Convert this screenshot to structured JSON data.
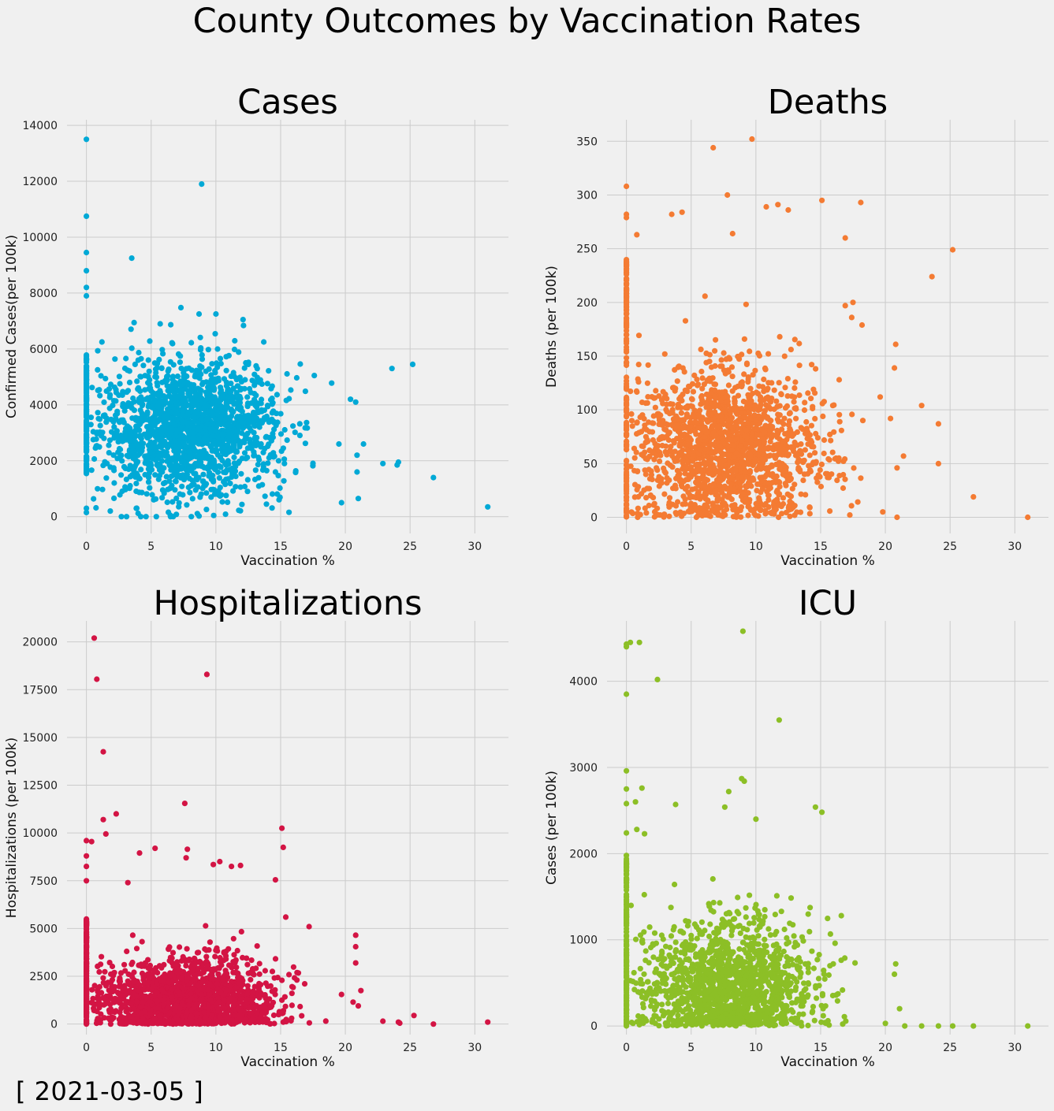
{
  "figure": {
    "title": "County Outcomes by Vaccination Rates",
    "date_label": "[ 2021-03-05 ]"
  },
  "chart_data": [
    {
      "type": "scatter",
      "key": "cases",
      "title": "Cases",
      "xlabel": "Vaccination %",
      "ylabel": "Confirmed Cases(per 100k)",
      "color": "#00a9d6",
      "xlim": [
        -1.5,
        32.6
      ],
      "ylim": [
        -600,
        14200
      ],
      "xticks": [
        0,
        5,
        10,
        15,
        20,
        25,
        30
      ],
      "yticks": [
        0,
        2000,
        4000,
        6000,
        8000,
        10000,
        12000,
        14000
      ],
      "grid": true,
      "cluster": {
        "x_center": 8,
        "x_spread": 3.4,
        "y_center": 3100,
        "y_spread": 1150,
        "count": 1700,
        "zero_x_count": 160,
        "zero_x_y_range": [
          1500,
          5800
        ]
      },
      "points": [
        {
          "x": 0,
          "y": 13500
        },
        {
          "x": 8.9,
          "y": 11900
        },
        {
          "x": 0,
          "y": 10750
        },
        {
          "x": 0,
          "y": 9450
        },
        {
          "x": 3.5,
          "y": 9250
        },
        {
          "x": 0,
          "y": 8800
        },
        {
          "x": 0,
          "y": 8200
        },
        {
          "x": 0,
          "y": 7900
        },
        {
          "x": 8.7,
          "y": 7250
        },
        {
          "x": 10,
          "y": 7250
        },
        {
          "x": 12.1,
          "y": 7050
        },
        {
          "x": 5.7,
          "y": 6900
        },
        {
          "x": 13.7,
          "y": 6250
        },
        {
          "x": 1.2,
          "y": 6250
        },
        {
          "x": 23.6,
          "y": 5300
        },
        {
          "x": 25.2,
          "y": 5450
        },
        {
          "x": 17.6,
          "y": 5050
        },
        {
          "x": 20.4,
          "y": 4200
        },
        {
          "x": 20.8,
          "y": 4100
        },
        {
          "x": 21.4,
          "y": 2600
        },
        {
          "x": 20.9,
          "y": 2200
        },
        {
          "x": 20.9,
          "y": 1600
        },
        {
          "x": 22.9,
          "y": 1900
        },
        {
          "x": 24.1,
          "y": 1950
        },
        {
          "x": 24.0,
          "y": 1850
        },
        {
          "x": 26.8,
          "y": 1400
        },
        {
          "x": 31.0,
          "y": 350
        },
        {
          "x": 21.0,
          "y": 650
        },
        {
          "x": 19.7,
          "y": 500
        },
        {
          "x": 2.7,
          "y": 0
        },
        {
          "x": 3.1,
          "y": 0
        },
        {
          "x": 4.2,
          "y": 0
        },
        {
          "x": 4.6,
          "y": 0
        },
        {
          "x": 5.4,
          "y": 0
        },
        {
          "x": 6.5,
          "y": 0
        },
        {
          "x": 6.7,
          "y": 0
        },
        {
          "x": 8.1,
          "y": 0
        },
        {
          "x": 0,
          "y": 150
        },
        {
          "x": 0,
          "y": 300
        },
        {
          "x": 19.5,
          "y": 2600
        }
      ]
    },
    {
      "type": "scatter",
      "key": "deaths",
      "title": "Deaths",
      "xlabel": "Vaccination %",
      "ylabel": "Deaths (per 100k)",
      "color": "#f47b33",
      "xlim": [
        -1.5,
        32.6
      ],
      "ylim": [
        -15,
        370
      ],
      "xticks": [
        0,
        5,
        10,
        15,
        20,
        25,
        30
      ],
      "yticks": [
        0,
        50,
        100,
        150,
        200,
        250,
        300,
        350
      ],
      "grid": true,
      "cluster": {
        "x_center": 8,
        "x_spread": 3.4,
        "y_center": 62,
        "y_spread": 38,
        "count": 1700,
        "zero_x_count": 170,
        "zero_x_y_range": [
          0,
          240
        ]
      },
      "points": [
        {
          "x": 9.7,
          "y": 352
        },
        {
          "x": 6.7,
          "y": 344
        },
        {
          "x": 0,
          "y": 308
        },
        {
          "x": 7.8,
          "y": 300
        },
        {
          "x": 15.1,
          "y": 295
        },
        {
          "x": 18.1,
          "y": 293
        },
        {
          "x": 11.7,
          "y": 291
        },
        {
          "x": 10.8,
          "y": 289
        },
        {
          "x": 12.5,
          "y": 286
        },
        {
          "x": 0,
          "y": 282
        },
        {
          "x": 4.3,
          "y": 284
        },
        {
          "x": 3.5,
          "y": 282
        },
        {
          "x": 0,
          "y": 279
        },
        {
          "x": 8.2,
          "y": 264
        },
        {
          "x": 0.8,
          "y": 263
        },
        {
          "x": 16.9,
          "y": 260
        },
        {
          "x": 25.2,
          "y": 249
        },
        {
          "x": 23.6,
          "y": 224
        },
        {
          "x": 20.8,
          "y": 161
        },
        {
          "x": 20.7,
          "y": 139
        },
        {
          "x": 22.8,
          "y": 104
        },
        {
          "x": 24.1,
          "y": 87
        },
        {
          "x": 20.4,
          "y": 92
        },
        {
          "x": 24.1,
          "y": 50
        },
        {
          "x": 26.8,
          "y": 19
        },
        {
          "x": 31.0,
          "y": 0
        },
        {
          "x": 20.9,
          "y": 0
        },
        {
          "x": 19.8,
          "y": 5
        },
        {
          "x": 21.4,
          "y": 57
        },
        {
          "x": 17.5,
          "y": 200
        },
        {
          "x": 18.2,
          "y": 179
        },
        {
          "x": 17.4,
          "y": 186
        },
        {
          "x": 16.9,
          "y": 197
        },
        {
          "x": 19.6,
          "y": 112
        },
        {
          "x": 20.9,
          "y": 46
        }
      ]
    },
    {
      "type": "scatter",
      "key": "hospitalizations",
      "title": "Hospitalizations",
      "xlabel": "Vaccination %",
      "ylabel": "Hospitalizations (per 100k)",
      "color": "#d31444",
      "xlim": [
        -1.5,
        32.6
      ],
      "ylim": [
        -550,
        21100
      ],
      "xticks": [
        0,
        5,
        10,
        15,
        20,
        25,
        30
      ],
      "yticks": [
        0,
        2500,
        5000,
        7500,
        10000,
        12500,
        15000,
        17500,
        20000
      ],
      "grid": true,
      "cluster": {
        "x_center": 8,
        "x_spread": 3.3,
        "y_center": 1200,
        "y_spread": 1100,
        "count": 1700,
        "zero_x_count": 190,
        "zero_x_y_range": [
          0,
          5500
        ]
      },
      "points": [
        {
          "x": 0.6,
          "y": 20200
        },
        {
          "x": 9.3,
          "y": 18300
        },
        {
          "x": 0.8,
          "y": 18050
        },
        {
          "x": 1.3,
          "y": 14250
        },
        {
          "x": 7.6,
          "y": 11550
        },
        {
          "x": 2.3,
          "y": 11000
        },
        {
          "x": 1.3,
          "y": 10700
        },
        {
          "x": 15.1,
          "y": 10250
        },
        {
          "x": 1.5,
          "y": 9950
        },
        {
          "x": 0,
          "y": 9600
        },
        {
          "x": 0.4,
          "y": 9550
        },
        {
          "x": 15.2,
          "y": 9250
        },
        {
          "x": 5.3,
          "y": 9200
        },
        {
          "x": 7.8,
          "y": 9150
        },
        {
          "x": 4.1,
          "y": 8950
        },
        {
          "x": 0,
          "y": 8800
        },
        {
          "x": 7.7,
          "y": 8700
        },
        {
          "x": 10.3,
          "y": 8500
        },
        {
          "x": 9.8,
          "y": 8350
        },
        {
          "x": 11.2,
          "y": 8250
        },
        {
          "x": 11.9,
          "y": 8300
        },
        {
          "x": 0,
          "y": 8250
        },
        {
          "x": 14.6,
          "y": 7550
        },
        {
          "x": 3.2,
          "y": 7400
        },
        {
          "x": 0,
          "y": 7500
        },
        {
          "x": 20.8,
          "y": 4650
        },
        {
          "x": 20.8,
          "y": 4050
        },
        {
          "x": 20.8,
          "y": 3200
        },
        {
          "x": 21.2,
          "y": 1750
        },
        {
          "x": 17.2,
          "y": 5100
        },
        {
          "x": 15.4,
          "y": 5600
        },
        {
          "x": 19.7,
          "y": 1550
        },
        {
          "x": 20.6,
          "y": 1150
        },
        {
          "x": 21.0,
          "y": 950
        },
        {
          "x": 22.9,
          "y": 150
        },
        {
          "x": 24.1,
          "y": 100
        },
        {
          "x": 24.2,
          "y": 50
        },
        {
          "x": 25.3,
          "y": 450
        },
        {
          "x": 26.8,
          "y": 0
        },
        {
          "x": 31.0,
          "y": 100
        }
      ]
    },
    {
      "type": "scatter",
      "key": "icu",
      "title": "ICU",
      "xlabel": "Vaccination %",
      "ylabel": "Cases (per 100k)",
      "color": "#8cbf26",
      "xlim": [
        -1.5,
        32.6
      ],
      "ylim": [
        -100,
        4700
      ],
      "xticks": [
        0,
        5,
        10,
        15,
        20,
        25,
        30
      ],
      "yticks": [
        0,
        1000,
        2000,
        3000,
        4000
      ],
      "grid": true,
      "cluster": {
        "x_center": 8,
        "x_spread": 3.2,
        "y_center": 450,
        "y_spread": 380,
        "count": 1500,
        "zero_x_count": 180,
        "zero_x_y_range": [
          0,
          2000
        ]
      },
      "points": [
        {
          "x": 9.0,
          "y": 4580
        },
        {
          "x": 0,
          "y": 4430
        },
        {
          "x": 0.3,
          "y": 4450
        },
        {
          "x": 1.0,
          "y": 4450
        },
        {
          "x": 0,
          "y": 4400
        },
        {
          "x": 2.4,
          "y": 4020
        },
        {
          "x": 0,
          "y": 3850
        },
        {
          "x": 11.8,
          "y": 3550
        },
        {
          "x": 0,
          "y": 2960
        },
        {
          "x": 8.9,
          "y": 2870
        },
        {
          "x": 9.1,
          "y": 2840
        },
        {
          "x": 0,
          "y": 2750
        },
        {
          "x": 1.2,
          "y": 2760
        },
        {
          "x": 7.9,
          "y": 2720
        },
        {
          "x": 0,
          "y": 2580
        },
        {
          "x": 0.7,
          "y": 2600
        },
        {
          "x": 3.8,
          "y": 2570
        },
        {
          "x": 14.6,
          "y": 2540
        },
        {
          "x": 15.1,
          "y": 2480
        },
        {
          "x": 7.6,
          "y": 2540
        },
        {
          "x": 0,
          "y": 2240
        },
        {
          "x": 0.8,
          "y": 2280
        },
        {
          "x": 1.4,
          "y": 2230
        },
        {
          "x": 10.0,
          "y": 2400
        },
        {
          "x": 20.8,
          "y": 720
        },
        {
          "x": 20.7,
          "y": 600
        },
        {
          "x": 21.1,
          "y": 200
        },
        {
          "x": 20.0,
          "y": 30
        },
        {
          "x": 21.5,
          "y": 0
        },
        {
          "x": 22.8,
          "y": 0
        },
        {
          "x": 24.1,
          "y": 0
        },
        {
          "x": 25.2,
          "y": 0
        },
        {
          "x": 26.8,
          "y": 0
        },
        {
          "x": 31.0,
          "y": 0
        },
        {
          "x": 16.6,
          "y": 1280
        }
      ]
    }
  ]
}
